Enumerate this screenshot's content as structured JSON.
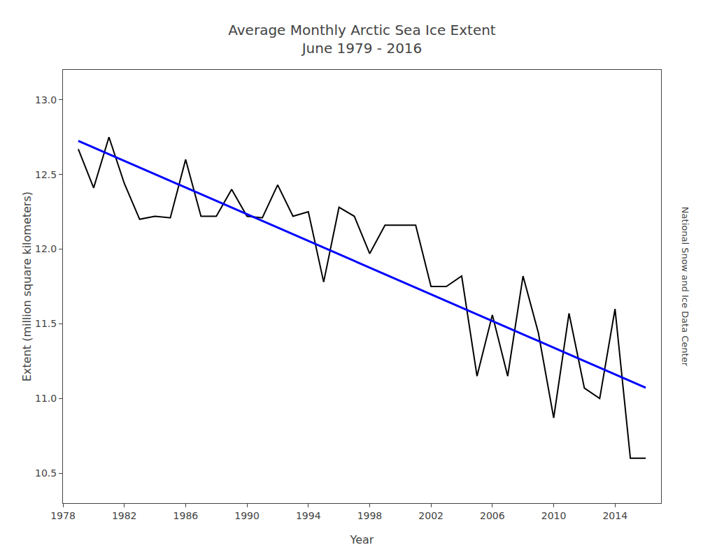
{
  "chart_data": {
    "type": "line",
    "title": "Average Monthly Arctic Sea Ice Extent",
    "subtitle": "June 1979 - 2016",
    "x_label": "Year",
    "y_label": "Extent (million square kilometers)",
    "annotations": [
      "National Snow and Ice Data Center"
    ],
    "series": [
      {
        "color": "#000000",
        "x": [
          1979,
          1980,
          1981,
          1982,
          1983,
          1984,
          1985,
          1986,
          1987,
          1988,
          1989,
          1990,
          1991,
          1992,
          1993,
          1994,
          1995,
          1996,
          1997,
          1998,
          1999,
          2000,
          2001,
          2002,
          2003,
          2004,
          2005,
          2006,
          2007,
          2008,
          2009,
          2010,
          2011,
          2012,
          2013,
          2014,
          2015,
          2016
        ],
        "values": [
          12.67,
          12.41,
          12.75,
          12.44,
          12.2,
          12.22,
          12.21,
          12.6,
          12.22,
          12.22,
          12.4,
          12.22,
          12.21,
          12.43,
          12.22,
          12.25,
          11.78,
          12.28,
          12.22,
          11.97,
          12.16,
          12.16,
          12.16,
          11.75,
          11.75,
          11.82,
          11.15,
          11.56,
          11.15,
          11.82,
          11.44,
          10.87,
          11.57,
          11.07,
          11.0,
          11.6,
          10.6,
          10.6
        ]
      },
      {
        "color": "#0000ff",
        "x": [
          1979,
          2016
        ],
        "values": [
          12.72502,
          11.07235
        ]
      }
    ],
    "xlim": [
      1978,
      2017
    ],
    "ylim": [
      10.3,
      13.2
    ],
    "xticks": [
      1978,
      1982,
      1986,
      1990,
      1994,
      1998,
      2002,
      2006,
      2010,
      2014
    ],
    "yticks": [
      10.5,
      {
        "value": 11,
        "label": "11.0"
      },
      11.5,
      {
        "value": 12,
        "label": "12.0"
      },
      12.5,
      {
        "value": 13,
        "label": "13.0"
      }
    ],
    "grid": false
  }
}
